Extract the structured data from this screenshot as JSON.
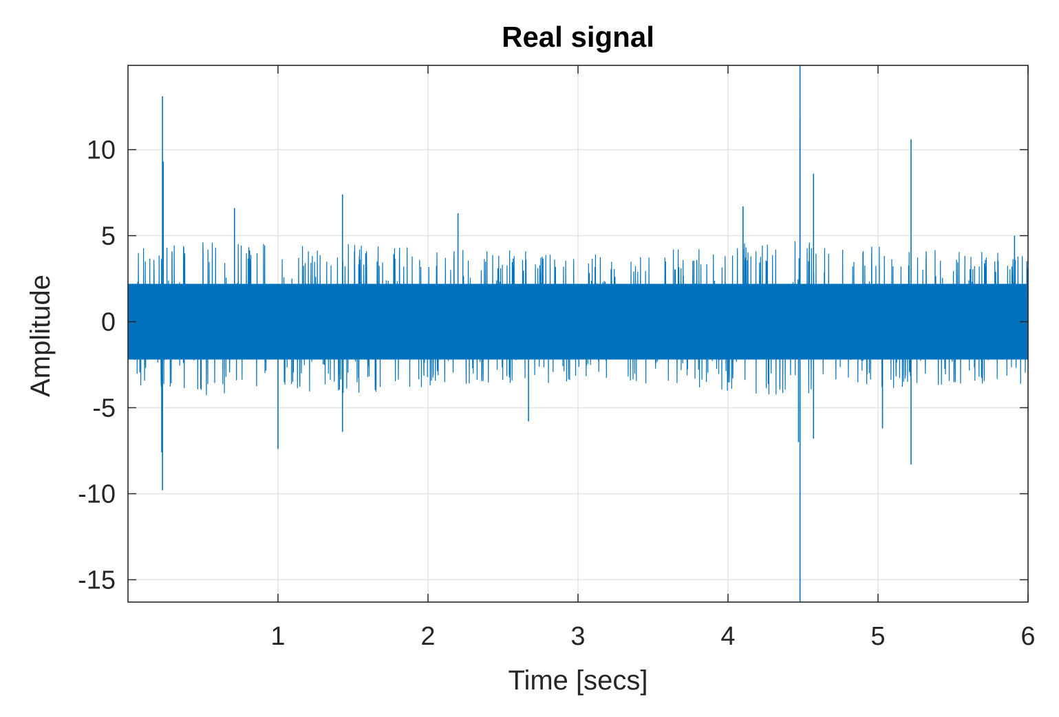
{
  "chart_data": {
    "type": "line",
    "title": "Real signal",
    "xlabel": "Time [secs]",
    "ylabel": "Amplitude",
    "xlim": [
      0,
      6
    ],
    "ylim": [
      -16.3,
      14.9
    ],
    "xticks": [
      1,
      2,
      3,
      4,
      5,
      6
    ],
    "xtick_labels": [
      "1",
      "2",
      "3",
      "4",
      "5",
      "6"
    ],
    "yticks": [
      -15,
      -10,
      -5,
      0,
      5,
      10
    ],
    "ytick_labels": [
      "-15",
      "-10",
      "-5",
      "0",
      "5",
      "10"
    ],
    "grid": true,
    "colors": {
      "series": "#0072BD",
      "grid": "#e3e3e3",
      "axes": "#262626"
    },
    "noise": {
      "base_half_range": 2.2,
      "typical_peak": 4.0
    },
    "envelope": [
      {
        "x": 0.0,
        "hi": 4.4,
        "lo": -3.6
      },
      {
        "x": 0.5,
        "hi": 4.8,
        "lo": -4.3
      },
      {
        "x": 1.0,
        "hi": 4.6,
        "lo": -4.0
      },
      {
        "x": 1.5,
        "hi": 4.5,
        "lo": -4.2
      },
      {
        "x": 2.0,
        "hi": 4.3,
        "lo": -3.8
      },
      {
        "x": 2.5,
        "hi": 4.2,
        "lo": -3.7
      },
      {
        "x": 3.0,
        "hi": 3.9,
        "lo": -3.5
      },
      {
        "x": 3.5,
        "hi": 4.1,
        "lo": -3.8
      },
      {
        "x": 4.0,
        "hi": 4.5,
        "lo": -4.1
      },
      {
        "x": 4.5,
        "hi": 4.9,
        "lo": -4.4
      },
      {
        "x": 5.0,
        "hi": 4.4,
        "lo": -3.9
      },
      {
        "x": 5.5,
        "hi": 4.2,
        "lo": -3.8
      },
      {
        "x": 6.0,
        "hi": 3.9,
        "lo": -3.6
      }
    ],
    "spikes": [
      {
        "x": 0.23,
        "y": 13.1
      },
      {
        "x": 0.23,
        "y": -9.8
      },
      {
        "x": 0.235,
        "y": 9.3
      },
      {
        "x": 0.225,
        "y": -7.6
      },
      {
        "x": 0.71,
        "y": 6.6
      },
      {
        "x": 1.0,
        "y": -7.4
      },
      {
        "x": 1.43,
        "y": 7.4
      },
      {
        "x": 1.43,
        "y": -6.4
      },
      {
        "x": 2.2,
        "y": 6.3
      },
      {
        "x": 2.67,
        "y": -5.8
      },
      {
        "x": 4.48,
        "y": 14.9
      },
      {
        "x": 4.48,
        "y": -16.3
      },
      {
        "x": 4.48,
        "y": 11.8
      },
      {
        "x": 4.47,
        "y": -7.0
      },
      {
        "x": 4.57,
        "y": 8.6
      },
      {
        "x": 4.57,
        "y": -6.8
      },
      {
        "x": 5.22,
        "y": 10.6
      },
      {
        "x": 5.22,
        "y": -8.3
      },
      {
        "x": 5.03,
        "y": -6.2
      },
      {
        "x": 4.1,
        "y": 6.7
      },
      {
        "x": 5.91,
        "y": 5.0
      }
    ]
  }
}
